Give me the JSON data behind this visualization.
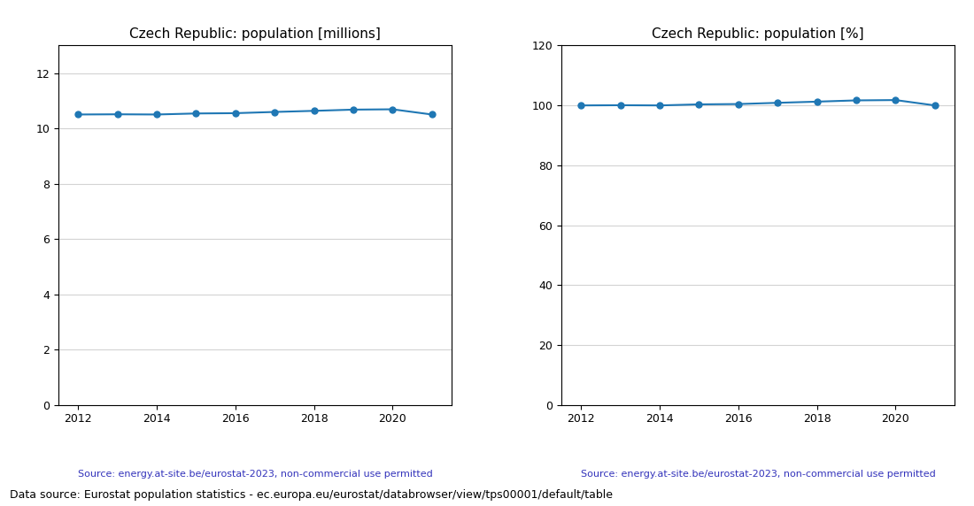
{
  "years": [
    2012,
    2013,
    2014,
    2015,
    2016,
    2017,
    2018,
    2019,
    2020,
    2021
  ],
  "population_millions": [
    10.505,
    10.512,
    10.505,
    10.542,
    10.553,
    10.597,
    10.637,
    10.681,
    10.693,
    10.505
  ],
  "population_pct": [
    100.0,
    100.07,
    100.0,
    100.35,
    100.46,
    100.87,
    101.26,
    101.68,
    101.79,
    100.0
  ],
  "title_millions": "Czech Republic: population [millions]",
  "title_pct": "Czech Republic: population [%]",
  "source_text": "Source: energy.at-site.be/eurostat-2023, non-commercial use permitted",
  "footer_text": "Data source: Eurostat population statistics - ec.europa.eu/eurostat/databrowser/view/tps00001/default/table",
  "line_color": "#1f77b4",
  "source_color": "#3333bb",
  "footer_color": "#000000",
  "ylim_millions": [
    0,
    13
  ],
  "ylim_pct": [
    0,
    120
  ],
  "yticks_millions": [
    0,
    2,
    4,
    6,
    8,
    10,
    12
  ],
  "yticks_pct": [
    0,
    20,
    40,
    60,
    80,
    100,
    120
  ],
  "xticks": [
    2012,
    2014,
    2016,
    2018,
    2020
  ],
  "marker": "o",
  "markersize": 5,
  "linewidth": 1.5
}
